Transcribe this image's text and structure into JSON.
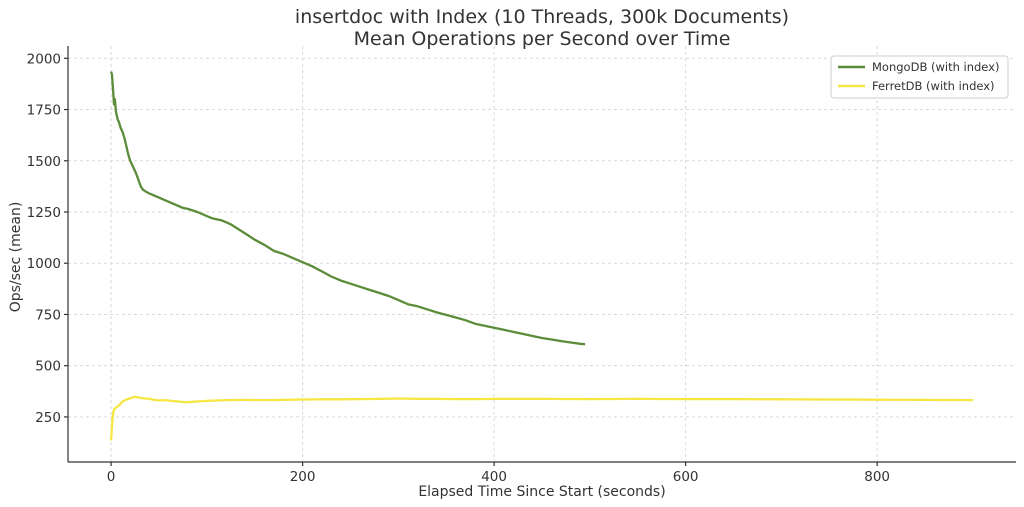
{
  "chart_data": {
    "type": "line",
    "title": [
      "insertdoc with Index (10 Threads, 300k Documents)",
      "Mean Operations per Second over Time"
    ],
    "xlabel": "Elapsed Time Since Start (seconds)",
    "ylabel": "Ops/sec (mean)",
    "xlim": [
      -45,
      945
    ],
    "ylim": [
      30,
      2060
    ],
    "xticks": [
      0,
      200,
      400,
      600,
      800
    ],
    "yticks": [
      250,
      500,
      750,
      1000,
      1250,
      1500,
      1750,
      2000
    ],
    "grid": true,
    "legend_position": "top-right",
    "series": [
      {
        "name": "MongoDB (with index)",
        "color": "#5b8c3a",
        "x": [
          0,
          1,
          2,
          3,
          4,
          5,
          6,
          7,
          8,
          10,
          12,
          14,
          16,
          18,
          20,
          23,
          26,
          29,
          31,
          33,
          36,
          40,
          45,
          50,
          55,
          60,
          65,
          70,
          75,
          80,
          85,
          90,
          95,
          100,
          105,
          110,
          115,
          120,
          125,
          130,
          140,
          150,
          160,
          170,
          180,
          190,
          200,
          210,
          220,
          230,
          240,
          250,
          260,
          270,
          280,
          290,
          300,
          310,
          320,
          330,
          340,
          350,
          360,
          370,
          380,
          390,
          400,
          410,
          420,
          430,
          440,
          450,
          460,
          470,
          480,
          490,
          495
        ],
        "values": [
          1935,
          1920,
          1850,
          1775,
          1800,
          1740,
          1720,
          1700,
          1690,
          1660,
          1640,
          1610,
          1570,
          1530,
          1500,
          1470,
          1440,
          1400,
          1375,
          1360,
          1350,
          1340,
          1330,
          1320,
          1310,
          1300,
          1290,
          1280,
          1270,
          1265,
          1258,
          1250,
          1240,
          1230,
          1220,
          1215,
          1210,
          1200,
          1190,
          1175,
          1145,
          1115,
          1090,
          1060,
          1045,
          1025,
          1005,
          985,
          960,
          935,
          915,
          900,
          885,
          870,
          855,
          840,
          820,
          800,
          790,
          775,
          760,
          748,
          735,
          722,
          705,
          695,
          685,
          675,
          665,
          655,
          645,
          635,
          628,
          620,
          613,
          607,
          605
        ]
      },
      {
        "name": "FerretDB (with index)",
        "color": "#f5e642",
        "x": [
          0,
          1,
          2,
          3,
          5,
          8,
          12,
          16,
          20,
          24,
          28,
          32,
          36,
          40,
          45,
          50,
          55,
          60,
          65,
          70,
          75,
          80,
          90,
          100,
          110,
          120,
          140,
          160,
          180,
          200,
          220,
          240,
          260,
          280,
          300,
          320,
          340,
          360,
          380,
          400,
          450,
          500,
          550,
          600,
          650,
          700,
          750,
          800,
          850,
          900
        ],
        "values": [
          135,
          210,
          265,
          285,
          295,
          305,
          325,
          335,
          340,
          348,
          345,
          342,
          340,
          338,
          333,
          330,
          332,
          330,
          327,
          325,
          323,
          322,
          325,
          328,
          330,
          332,
          333,
          332,
          333,
          335,
          336,
          336,
          337,
          338,
          340,
          338,
          338,
          337,
          337,
          338,
          338,
          337,
          338,
          337,
          337,
          336,
          335,
          334,
          333,
          332
        ]
      }
    ]
  }
}
